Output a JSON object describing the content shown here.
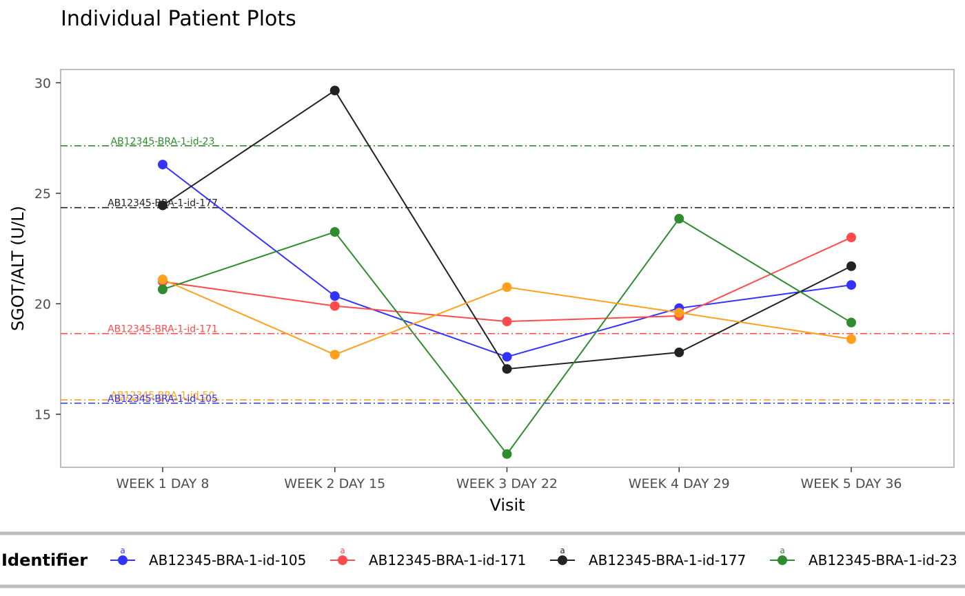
{
  "chart_data": {
    "type": "line",
    "title": "Individual Patient Plots",
    "xlabel": "Visit",
    "ylabel": "SGOT/ALT (U/L)",
    "categories": [
      "WEEK 1 DAY 8",
      "WEEK 2 DAY 15",
      "WEEK 3 DAY 22",
      "WEEK 4 DAY 29",
      "WEEK 5 DAY 36"
    ],
    "ylim": [
      12.6,
      30.6
    ],
    "yticks": [
      15,
      20,
      25,
      30
    ],
    "grid": false,
    "legend_position": "bottom",
    "legend_title": "Identifier",
    "legend_key_label": "a",
    "series": [
      {
        "name": "AB12345-BRA-1-id-105",
        "color": "#3333FF",
        "values": [
          26.3,
          20.35,
          17.6,
          19.8,
          20.85
        ]
      },
      {
        "name": "AB12345-BRA-1-id-171",
        "color": "#FF4B4B",
        "values": [
          21.0,
          19.9,
          19.2,
          19.45,
          23.0
        ]
      },
      {
        "name": "AB12345-BRA-1-id-177",
        "color": "#222222",
        "values": [
          24.45,
          29.65,
          17.05,
          17.8,
          21.7
        ]
      },
      {
        "name": "AB12345-BRA-1-id-23",
        "color": "#2E8B2E",
        "values": [
          20.65,
          23.25,
          13.2,
          23.85,
          19.15
        ]
      },
      {
        "name": "AB12345-BRA-1-id-50",
        "color": "#FF9F1C",
        "values": [
          21.1,
          17.7,
          20.75,
          19.6,
          18.4
        ]
      }
    ],
    "reference_lines": [
      {
        "label": "AB12345-BRA-1-id-23",
        "value": 27.15,
        "color": "#2E8B2E"
      },
      {
        "label": "AB12345-BRA-1-id-177",
        "value": 24.35,
        "color": "#222222"
      },
      {
        "label": "AB12345-BRA-1-id-171",
        "value": 18.65,
        "color": "#FF4B4B"
      },
      {
        "label": "AB12345-BRA-1-id-50",
        "value": 15.65,
        "color": "#FF9F1C"
      },
      {
        "label": "AB12345-BRA-1-id-105",
        "value": 15.5,
        "color": "#3333FF"
      }
    ],
    "legend_items": [
      {
        "name": "AB12345-BRA-1-id-105",
        "color": "#3333FF"
      },
      {
        "name": "AB12345-BRA-1-id-171",
        "color": "#FF4B4B"
      },
      {
        "name": "AB12345-BRA-1-id-177",
        "color": "#222222"
      },
      {
        "name": "AB12345-BRA-1-id-23",
        "color": "#2E8B2E"
      }
    ]
  }
}
